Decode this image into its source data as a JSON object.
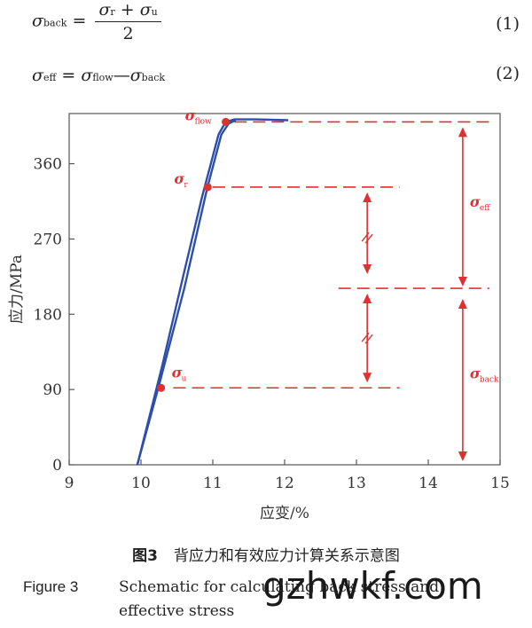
{
  "equations": {
    "eq1": {
      "lhs": "σ",
      "lhs_sub": "back",
      "num_a": "σ",
      "num_a_sub": "r",
      "plus": " + ",
      "num_b": "σ",
      "num_b_sub": "u",
      "den": "2",
      "number": "(1)"
    },
    "eq2": {
      "lhs": "σ",
      "lhs_sub": "eff",
      "a": "σ",
      "a_sub": "flow",
      "minus": "—",
      "b": "σ",
      "b_sub": "back",
      "number": "(2)"
    }
  },
  "chart_data": {
    "type": "line",
    "xlabel": "应变/%",
    "ylabel": "应力/MPa",
    "xlim": [
      9,
      15
    ],
    "ylim": [
      0,
      420
    ],
    "xticks": [
      "9",
      "10",
      "11",
      "12",
      "13",
      "14",
      "15"
    ],
    "yticks": [
      "0",
      "90",
      "180",
      "270",
      "360"
    ],
    "series": [
      {
        "color": "#2e4fa8",
        "points": [
          [
            9.95,
            0
          ],
          [
            10.3,
            120
          ],
          [
            10.6,
            230
          ],
          [
            10.85,
            320
          ],
          [
            11.08,
            395
          ],
          [
            11.18,
            410
          ],
          [
            11.3,
            413
          ],
          [
            11.6,
            413
          ],
          [
            12.05,
            412
          ]
        ]
      },
      {
        "color": "#2e4fa8",
        "points": [
          [
            9.95,
            0
          ],
          [
            10.25,
            95
          ],
          [
            10.6,
            210
          ],
          [
            10.92,
            330
          ],
          [
            11.12,
            395
          ],
          [
            11.22,
            408
          ],
          [
            11.32,
            412
          ]
        ]
      }
    ],
    "markers": [
      {
        "label": "σ",
        "sub": "flow",
        "x": 11.18,
        "y": 410
      },
      {
        "label": "σ",
        "sub": "r",
        "x": 10.93,
        "y": 332
      },
      {
        "label": "σ",
        "sub": "u",
        "x": 10.28,
        "y": 92
      }
    ],
    "annotations": {
      "flow_line": 410,
      "r_line": 332,
      "u_line": 92,
      "mid_line": 211,
      "eff_label": "σ",
      "eff_sub": "eff",
      "back_label": "σ",
      "back_sub": "back",
      "accent_color": "#e03030"
    }
  },
  "caption": {
    "cn_fig": "图3",
    "cn_text": "背应力和有效应力计算关系示意图",
    "en_fig": "Figure 3",
    "en_line1": "Schematic for calculating back stress and",
    "en_line2": "effective stress"
  },
  "watermark": "gzhwkf.com"
}
